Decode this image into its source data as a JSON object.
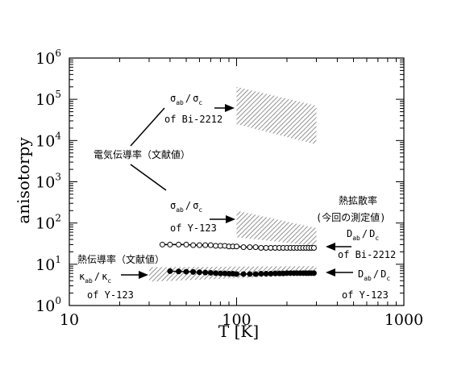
{
  "chart_data": {
    "type": "scatter",
    "title": "",
    "xlabel": "T [K]",
    "ylabel": "anisotorpy",
    "x_scale": "log",
    "y_scale": "log",
    "xlim": [
      10,
      1000
    ],
    "ylim": [
      1,
      1000000
    ],
    "x_ticks": [
      {
        "base": "10",
        "exp": ""
      },
      {
        "base": "100",
        "exp": ""
      },
      {
        "base": "1000",
        "exp": ""
      }
    ],
    "y_ticks": [
      {
        "base": "10",
        "exp": "0"
      },
      {
        "base": "10",
        "exp": "1"
      },
      {
        "base": "10",
        "exp": "2"
      },
      {
        "base": "10",
        "exp": "3"
      },
      {
        "base": "10",
        "exp": "4"
      },
      {
        "base": "10",
        "exp": "5"
      },
      {
        "base": "10",
        "exp": "6"
      }
    ],
    "bands": [
      {
        "id": "sigma_bi2212",
        "x": [
          100,
          300
        ],
        "upper": [
          200000,
          70000
        ],
        "lower": [
          25000,
          8000
        ]
      },
      {
        "id": "sigma_y123",
        "x": [
          100,
          300
        ],
        "upper": [
          200,
          75
        ],
        "lower": [
          45,
          28
        ]
      },
      {
        "id": "kappa_y123",
        "x": [
          30,
          300
        ],
        "upper": [
          8.5,
          9
        ],
        "lower": [
          3.8,
          5.5
        ]
      }
    ],
    "series": [
      {
        "id": "D_bi2212",
        "marker": "open-circle",
        "x": [
          36,
          40,
          45,
          50,
          55,
          60,
          65,
          70,
          75,
          80,
          85,
          90,
          95,
          100,
          110,
          120,
          130,
          140,
          150,
          160,
          170,
          180,
          190,
          200,
          210,
          220,
          230,
          240,
          250,
          260,
          270,
          280,
          290
        ],
        "y": [
          30,
          30,
          30,
          30,
          29,
          29,
          29,
          29,
          28,
          28,
          28,
          27,
          27,
          27,
          26,
          26,
          26,
          25,
          25,
          25,
          25,
          25,
          25,
          25,
          25,
          25,
          25,
          25,
          25,
          25,
          25,
          25,
          25
        ]
      },
      {
        "id": "D_y123",
        "marker": "filled-circle",
        "x": [
          40,
          45,
          50,
          55,
          60,
          65,
          70,
          75,
          80,
          85,
          90,
          95,
          100,
          110,
          120,
          130,
          140,
          150,
          160,
          170,
          180,
          190,
          200,
          210,
          220,
          230,
          240,
          250,
          260,
          270,
          280,
          290
        ],
        "y": [
          6.8,
          6.7,
          6.6,
          6.5,
          6.4,
          6.3,
          6.2,
          6.1,
          6.0,
          6.0,
          5.9,
          5.9,
          5.8,
          5.8,
          5.8,
          5.8,
          5.9,
          5.9,
          5.9,
          6.0,
          6.0,
          6.0,
          6.1,
          6.1,
          6.1,
          6.1,
          6.1,
          6.1,
          6.1,
          6.1,
          6.1,
          6.1
        ]
      }
    ],
    "annotations": {
      "electrical_group": "電気伝導率（文献値）",
      "thermal_cond_group": "熱伝導率（文献値）",
      "thermal_diff_group": "熱拡散率",
      "thermal_diff_sub": "(今回の測定値)",
      "sigma_sym": "σ",
      "kappa_sym": "κ",
      "D_sym": "D",
      "sub_ab": "ab",
      "sub_c": "c",
      "slash": "/",
      "of_bi2212": "of Bi-2212",
      "of_y123": "of Y-123"
    }
  }
}
